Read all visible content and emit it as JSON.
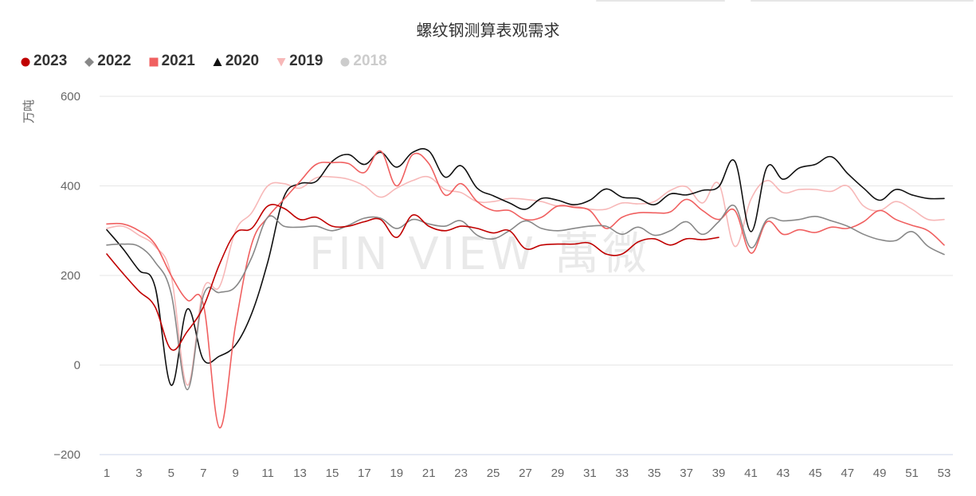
{
  "title": "螺纹钢测算表观需求",
  "legend": [
    {
      "label": "2023",
      "color": "#c00000",
      "marker": "circle",
      "enabled": true
    },
    {
      "label": "2022",
      "color": "#888888",
      "marker": "diamond",
      "enabled": true
    },
    {
      "label": "2021",
      "color": "#f06060",
      "marker": "square",
      "enabled": true
    },
    {
      "label": "2020",
      "color": "#111111",
      "marker": "triangle",
      "enabled": true
    },
    {
      "label": "2019",
      "color": "#f7b8b8",
      "marker": "triangle-down",
      "enabled": true
    },
    {
      "label": "2018",
      "color": "#cccccc",
      "marker": "circle",
      "enabled": false
    }
  ],
  "watermark": "FIN VIEW 萬微",
  "chart_data": {
    "type": "line",
    "title": "螺纹钢测算表观需求",
    "ylabel": "万吨",
    "xlabel": "",
    "ylim": [
      -200,
      600
    ],
    "xlim": [
      1,
      53
    ],
    "yticks": [
      -200,
      0,
      200,
      400,
      600
    ],
    "xticks": [
      1,
      3,
      5,
      7,
      9,
      11,
      13,
      15,
      17,
      19,
      21,
      23,
      25,
      27,
      29,
      31,
      33,
      35,
      37,
      39,
      41,
      43,
      45,
      47,
      49,
      51,
      53
    ],
    "grid": true,
    "legend_position": "top-left",
    "series": [
      {
        "name": "2023",
        "color": "#c00000",
        "x": [
          1,
          2,
          3,
          4,
          5,
          6,
          7,
          8,
          9,
          10,
          11,
          12,
          13,
          14,
          15,
          16,
          17,
          18,
          19,
          20,
          21,
          22,
          23,
          24,
          25,
          26,
          27,
          28,
          29,
          30,
          31,
          32,
          33,
          34,
          35,
          36,
          37,
          38,
          39
        ],
        "values": [
          248,
          205,
          165,
          130,
          35,
          75,
          130,
          225,
          295,
          305,
          355,
          350,
          325,
          330,
          310,
          310,
          320,
          325,
          285,
          335,
          310,
          300,
          310,
          305,
          295,
          300,
          260,
          268,
          270,
          270,
          272,
          248,
          248,
          275,
          282,
          268,
          282,
          280,
          285
        ]
      },
      {
        "name": "2022",
        "color": "#888888",
        "x": [
          1,
          2,
          3,
          4,
          5,
          6,
          7,
          8,
          9,
          10,
          11,
          12,
          13,
          14,
          15,
          16,
          17,
          18,
          19,
          20,
          21,
          22,
          23,
          24,
          25,
          26,
          27,
          28,
          29,
          30,
          31,
          32,
          33,
          34,
          35,
          36,
          37,
          38,
          39,
          40,
          41,
          42,
          43,
          44,
          45,
          46,
          47,
          48,
          49,
          50,
          51,
          52,
          53
        ],
        "values": [
          268,
          270,
          265,
          230,
          160,
          -55,
          155,
          162,
          175,
          240,
          330,
          310,
          308,
          310,
          300,
          312,
          328,
          328,
          305,
          325,
          315,
          310,
          322,
          290,
          282,
          300,
          322,
          305,
          300,
          305,
          310,
          310,
          292,
          308,
          290,
          300,
          320,
          292,
          320,
          355,
          262,
          325,
          322,
          325,
          332,
          322,
          310,
          292,
          280,
          278,
          298,
          265,
          247
        ]
      },
      {
        "name": "2021",
        "color": "#f06060",
        "x": [
          1,
          2,
          3,
          4,
          5,
          6,
          7,
          8,
          9,
          10,
          11,
          12,
          13,
          14,
          15,
          16,
          17,
          18,
          19,
          20,
          21,
          22,
          23,
          24,
          25,
          26,
          27,
          28,
          29,
          30,
          31,
          32,
          33,
          34,
          35,
          36,
          37,
          38,
          39,
          40,
          41,
          42,
          43,
          44,
          45,
          46,
          47,
          48,
          49,
          50,
          51,
          52,
          53
        ],
        "values": [
          315,
          315,
          300,
          270,
          200,
          145,
          135,
          -140,
          90,
          270,
          330,
          370,
          410,
          448,
          452,
          450,
          430,
          478,
          400,
          470,
          450,
          380,
          405,
          365,
          345,
          345,
          325,
          330,
          355,
          352,
          345,
          305,
          330,
          340,
          340,
          342,
          370,
          345,
          325,
          345,
          250,
          320,
          292,
          302,
          296,
          308,
          305,
          320,
          345,
          325,
          312,
          300,
          268
        ]
      },
      {
        "name": "2020",
        "color": "#111111",
        "x": [
          1,
          2,
          3,
          4,
          5,
          6,
          7,
          8,
          9,
          10,
          11,
          12,
          13,
          14,
          15,
          16,
          17,
          18,
          19,
          20,
          21,
          22,
          23,
          24,
          25,
          26,
          27,
          28,
          29,
          30,
          31,
          32,
          33,
          34,
          35,
          36,
          37,
          38,
          39,
          40,
          41,
          42,
          43,
          44,
          45,
          46,
          47,
          48,
          49,
          50,
          51,
          52,
          53
        ],
        "values": [
          302,
          260,
          212,
          175,
          -45,
          125,
          12,
          20,
          45,
          115,
          230,
          375,
          405,
          410,
          455,
          470,
          448,
          475,
          442,
          475,
          478,
          420,
          445,
          395,
          378,
          362,
          348,
          372,
          368,
          358,
          368,
          393,
          375,
          372,
          358,
          382,
          380,
          390,
          398,
          455,
          298,
          442,
          415,
          440,
          448,
          465,
          428,
          395,
          368,
          392,
          380,
          372,
          372
        ]
      },
      {
        "name": "2019",
        "color": "#f7b8b8",
        "x": [
          1,
          2,
          3,
          4,
          5,
          6,
          7,
          8,
          9,
          10,
          11,
          12,
          13,
          14,
          15,
          16,
          17,
          18,
          19,
          20,
          21,
          22,
          23,
          24,
          25,
          26,
          27,
          28,
          29,
          30,
          31,
          32,
          33,
          34,
          35,
          36,
          37,
          38,
          39,
          40,
          41,
          42,
          43,
          44,
          45,
          46,
          47,
          48,
          49,
          50,
          51,
          52,
          53
        ],
        "values": [
          305,
          310,
          290,
          265,
          200,
          -45,
          170,
          175,
          300,
          340,
          400,
          405,
          395,
          418,
          420,
          415,
          400,
          375,
          395,
          412,
          420,
          392,
          385,
          365,
          365,
          372,
          370,
          365,
          355,
          355,
          348,
          348,
          362,
          360,
          365,
          390,
          398,
          362,
          405,
          265,
          370,
          412,
          385,
          392,
          392,
          388,
          400,
          355,
          345,
          365,
          348,
          325,
          325
        ]
      }
    ]
  }
}
